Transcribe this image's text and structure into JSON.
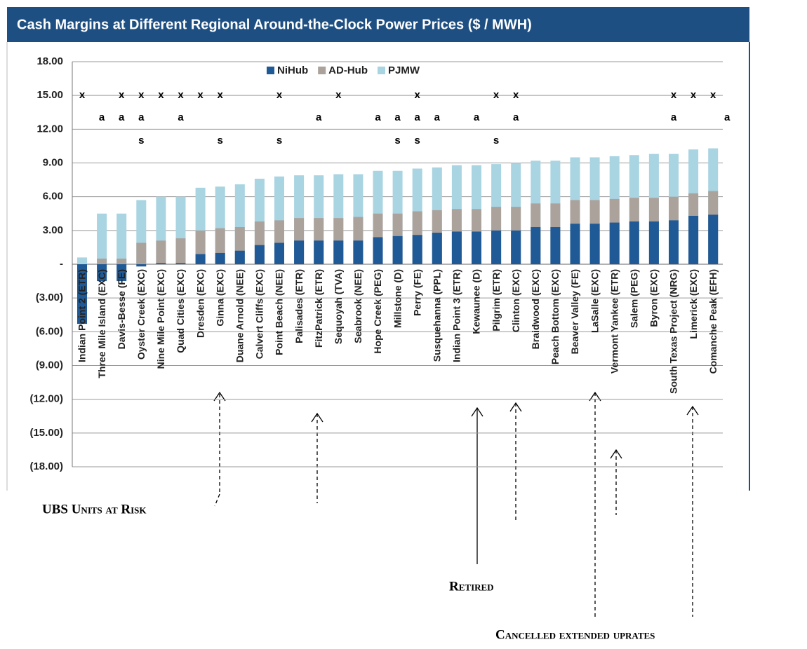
{
  "chart_data": {
    "type": "bar",
    "title": "Cash Margins at Different Regional Around-the-Clock Power Prices ($ / MWH)",
    "categories": [
      "Indian Point 2 (ETR)",
      "Three Mile Island (EXC)",
      "Davis-Besse (FE)",
      "Oyster Creek (EXC)",
      "Nine Mile Point (EXC)",
      "Quad Cities (EXC)",
      "Dresden (EXC)",
      "Ginna (EXC)",
      "Duane Arnold (NEE)",
      "Calvert Cliffs (EXC)",
      "Point Beach (NEE)",
      "Palisades (ETR)",
      "FitzPatrick (ETR)",
      "Sequoyah (TVA)",
      "Seabrook (NEE)",
      "Hope Creek (PEG)",
      "Millstone (D)",
      "Perry (FE)",
      "Susquehanna (PPL)",
      "Indian Point 3 (ETR)",
      "Kewaunee (D)",
      "Pilgrim (ETR)",
      "Clinton (EXC)",
      "Braidwood (EXC)",
      "Peach Bottom (EXC)",
      "Beaver Valley (FE)",
      "LaSalle (EXC)",
      "Vermont Yankee (ETR)",
      "Salem (PEG)",
      "Byron (EXC)",
      "South Texas Project (NRG)",
      "Limerick (EXC)",
      "Comanche Peak (EFH)"
    ],
    "series": [
      {
        "name": "PJMW",
        "color": "#a9d4e2",
        "values": [
          0.6,
          4.5,
          4.5,
          5.7,
          6.0,
          6.0,
          6.8,
          6.9,
          7.1,
          7.6,
          7.8,
          7.9,
          7.9,
          8.0,
          8.0,
          8.3,
          8.3,
          8.5,
          8.6,
          8.8,
          8.8,
          8.9,
          9.0,
          9.2,
          9.2,
          9.5,
          9.5,
          9.6,
          9.7,
          9.8,
          9.8,
          10.2,
          10.3
        ]
      },
      {
        "name": "AD-Hub",
        "color": "#aba29c",
        "values": [
          -2.5,
          0.5,
          0.5,
          1.9,
          2.1,
          2.3,
          3.0,
          3.2,
          3.3,
          3.8,
          3.9,
          4.1,
          4.1,
          4.1,
          4.2,
          4.5,
          4.5,
          4.7,
          4.8,
          4.9,
          4.9,
          5.1,
          5.1,
          5.4,
          5.4,
          5.7,
          5.7,
          5.8,
          5.9,
          5.9,
          6.0,
          6.3,
          6.5
        ]
      },
      {
        "name": "NiHub",
        "color": "#1f5a96",
        "values": [
          -5.3,
          -1.5,
          -1.5,
          -0.2,
          0.1,
          0.1,
          0.9,
          1.0,
          1.2,
          1.7,
          1.9,
          2.1,
          2.1,
          2.1,
          2.1,
          2.4,
          2.5,
          2.6,
          2.8,
          2.9,
          2.9,
          3.0,
          3.0,
          3.3,
          3.3,
          3.6,
          3.6,
          3.7,
          3.8,
          3.8,
          3.9,
          4.3,
          4.4
        ]
      }
    ],
    "legend_order": [
      "NiHub",
      "AD-Hub",
      "PJMW"
    ],
    "ylim": [
      -18,
      18
    ],
    "yticks": [
      {
        "value": -18,
        "label": "(18.00)"
      },
      {
        "value": -15,
        "label": "(15.00)"
      },
      {
        "value": -12,
        "label": "(12.00)"
      },
      {
        "value": -9,
        "label": "(9.00)"
      },
      {
        "value": -6,
        "label": "(6.00)"
      },
      {
        "value": -3,
        "label": "(3.00)"
      },
      {
        "value": 0,
        "label": "-"
      },
      {
        "value": 3,
        "label": "3.00"
      },
      {
        "value": 6,
        "label": "6.00"
      },
      {
        "value": 9,
        "label": "9.00"
      },
      {
        "value": 12,
        "label": "12.00"
      },
      {
        "value": 15,
        "label": "15.00"
      },
      {
        "value": 18,
        "label": "18.00"
      }
    ],
    "grid": true,
    "marker_rows": [
      [
        "x",
        null,
        "x",
        "x",
        "x",
        "x",
        "x",
        "x",
        null,
        null,
        "x",
        null,
        null,
        "x",
        null,
        null,
        null,
        "x",
        null,
        null,
        null,
        "x",
        "x",
        null,
        null,
        null,
        null,
        null,
        null,
        null,
        "x",
        "x",
        "x"
      ],
      [
        null,
        "a",
        "a",
        "a",
        null,
        "a",
        null,
        null,
        null,
        null,
        null,
        null,
        "a",
        null,
        null,
        "a",
        "a",
        "a",
        "a",
        null,
        "a",
        null,
        "a",
        null,
        null,
        null,
        null,
        null,
        null,
        null,
        "a",
        null,
        "a"
      ],
      [
        null,
        null,
        null,
        "s",
        null,
        null,
        null,
        "s",
        null,
        null,
        "s",
        null,
        null,
        null,
        null,
        null,
        "s",
        "s",
        null,
        null,
        null,
        "s",
        null,
        null,
        null,
        null,
        null,
        null,
        null,
        null,
        null,
        null,
        null
      ]
    ],
    "annotations": [
      "UBS Units at Risk",
      "Retired",
      "Cancelled extended uprates"
    ]
  }
}
